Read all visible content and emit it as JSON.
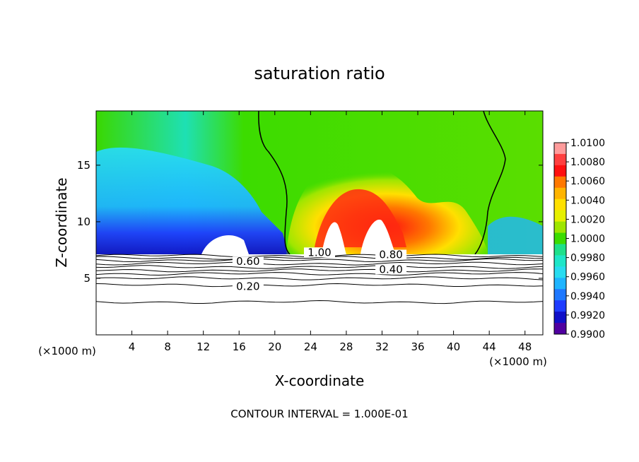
{
  "chart_data": {
    "type": "heatmap",
    "title": "saturation ratio",
    "xlabel": "X-coordinate",
    "ylabel": "Z-coordinate",
    "x_unit": "(×1000 m)",
    "y_unit": "(×1000 m)",
    "xlim": [
      0,
      50
    ],
    "ylim": [
      0,
      19.8
    ],
    "x_ticks": [
      "4",
      "8",
      "12",
      "16",
      "20",
      "24",
      "28",
      "32",
      "36",
      "40",
      "44",
      "48"
    ],
    "x_tick_values": [
      4,
      8,
      12,
      16,
      20,
      24,
      28,
      32,
      36,
      40,
      44,
      48
    ],
    "y_ticks": [
      "5",
      "10",
      "15"
    ],
    "y_tick_values": [
      5,
      10,
      15
    ],
    "colorbar": {
      "labels": [
        "1.0100",
        "1.0080",
        "1.0060",
        "1.0040",
        "1.0020",
        "1.0000",
        "0.9980",
        "0.9960",
        "0.9940",
        "0.9920",
        "0.9900"
      ],
      "colors": [
        "#ff9c9c",
        "#ff4040",
        "#ff1010",
        "#ff7800",
        "#ffb400",
        "#ffe000",
        "#e6f000",
        "#9ee600",
        "#3cdc00",
        "#1ee08a",
        "#1ee6c8",
        "#28dcf0",
        "#1eb4ff",
        "#1e78ff",
        "#1e3cff",
        "#1010c8",
        "#5000a0"
      ]
    },
    "contour_labels": [
      {
        "text": "1.00",
        "x": 25,
        "y": 7.1
      },
      {
        "text": "0.80",
        "x": 33,
        "y": 6.9
      },
      {
        "text": "0.60",
        "x": 17,
        "y": 6.3
      },
      {
        "text": "0.40",
        "x": 33,
        "y": 5.6
      },
      {
        "text": "0.20",
        "x": 17,
        "y": 4.1
      }
    ],
    "contour_levels_lower": [
      7.0,
      6.8,
      6.6,
      6.3,
      6.0,
      5.7,
      5.4,
      5.0,
      4.4,
      2.9
    ],
    "annotation": "CONTOUR INTERVAL = 1.000E-01"
  }
}
